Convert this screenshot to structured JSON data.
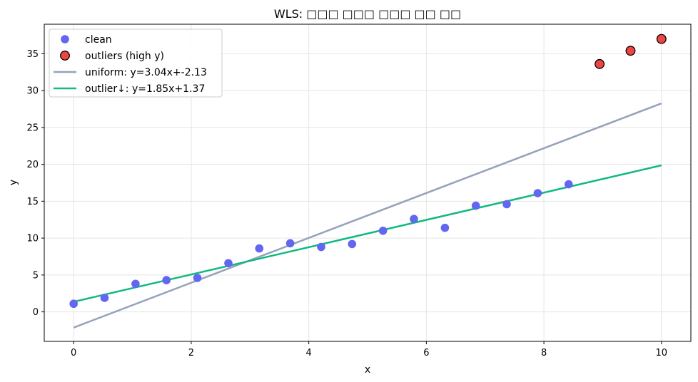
{
  "chart_data": {
    "type": "scatter",
    "title": "WLS: □□□ □□□ □□□ □□ □□",
    "xlabel": "x",
    "ylabel": "y",
    "xlim": [
      -0.5,
      10.5
    ],
    "ylim": [
      -4,
      39
    ],
    "xticks": [
      0,
      2,
      4,
      6,
      8,
      10
    ],
    "yticks": [
      0,
      5,
      10,
      15,
      20,
      25,
      30,
      35
    ],
    "grid": true,
    "legend_position": "top-left",
    "series": [
      {
        "name": "clean",
        "kind": "scatter",
        "color": "#6366f1",
        "x": [
          0.0,
          0.526,
          1.053,
          1.579,
          2.105,
          2.632,
          3.158,
          3.684,
          4.211,
          4.737,
          5.263,
          5.789,
          6.316,
          6.842,
          7.368,
          7.895,
          8.421
        ],
        "y": [
          1.1,
          1.9,
          3.8,
          4.3,
          4.6,
          6.6,
          8.6,
          9.3,
          8.8,
          9.2,
          11.0,
          12.6,
          11.4,
          14.4,
          14.6,
          16.1,
          17.3
        ]
      },
      {
        "name": "outliers (high y)",
        "kind": "scatter",
        "color": "#ef4444",
        "edge_color": "#000000",
        "x": [
          8.947,
          9.474,
          10.0
        ],
        "y": [
          33.6,
          35.4,
          37.0
        ]
      },
      {
        "name": "uniform: y=3.04x+-2.13",
        "kind": "line",
        "color": "#94a3b8",
        "slope": 3.04,
        "intercept": -2.13,
        "x": [
          0,
          10
        ]
      },
      {
        "name": "outlier↓: y=1.85x+1.37",
        "kind": "line",
        "color": "#10b981",
        "slope": 1.85,
        "intercept": 1.37,
        "x": [
          0,
          10
        ]
      }
    ]
  }
}
